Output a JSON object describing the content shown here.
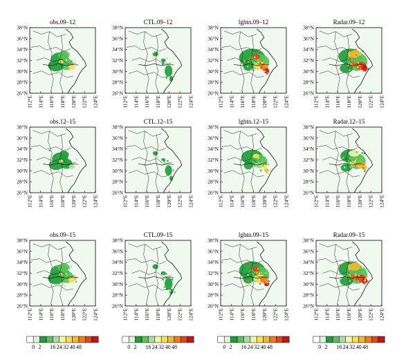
{
  "panels": [
    {
      "title": "obs.09–12",
      "pattern": "obs",
      "intensity": 0.7
    },
    {
      "title": "CTL.09–12",
      "pattern": "ctl",
      "intensity": 0.4
    },
    {
      "title": "lghtn.09–12",
      "pattern": "lghtn",
      "intensity": 1.0
    },
    {
      "title": "Radar.09–12",
      "pattern": "radar",
      "intensity": 1.0
    },
    {
      "title": "obs.12–15",
      "pattern": "obs",
      "intensity": 0.45
    },
    {
      "title": "CTL.12–15",
      "pattern": "ctl",
      "intensity": 0.25
    },
    {
      "title": "lghtn.12–15",
      "pattern": "lghtn",
      "intensity": 0.6
    },
    {
      "title": "Radar.12–15",
      "pattern": "radar",
      "intensity": 0.65
    },
    {
      "title": "obs.09–15",
      "pattern": "obs",
      "intensity": 0.75
    },
    {
      "title": "CTL.09–15",
      "pattern": "ctl",
      "intensity": 0.45
    },
    {
      "title": "lghtn.09–15",
      "pattern": "lghtn",
      "intensity": 1.0
    },
    {
      "title": "Radar.09–15",
      "pattern": "radar",
      "intensity": 1.0
    }
  ],
  "lat_ticks": [
    "38°N",
    "36°N",
    "34°N",
    "32°N",
    "30°N",
    "28°N",
    "26°N"
  ],
  "lon_ticks": [
    "112°E",
    "114°E",
    "116°E",
    "118°E",
    "120°E",
    "122°E",
    "124°E"
  ],
  "colorbar": {
    "labels": [
      "0",
      "2",
      "16",
      "24",
      "32",
      "40",
      "48"
    ],
    "colors": [
      "#ffffff",
      "#dff3df",
      "#1f9e3a",
      "#58c25a",
      "#a8dea0",
      "#f4f4a8",
      "#f8e04c",
      "#f4b830",
      "#ee7c1e",
      "#e44418",
      "#c8101a"
    ]
  },
  "colors": {
    "land": "#f0f8f0",
    "border": "#222222",
    "coast": "#111111"
  }
}
